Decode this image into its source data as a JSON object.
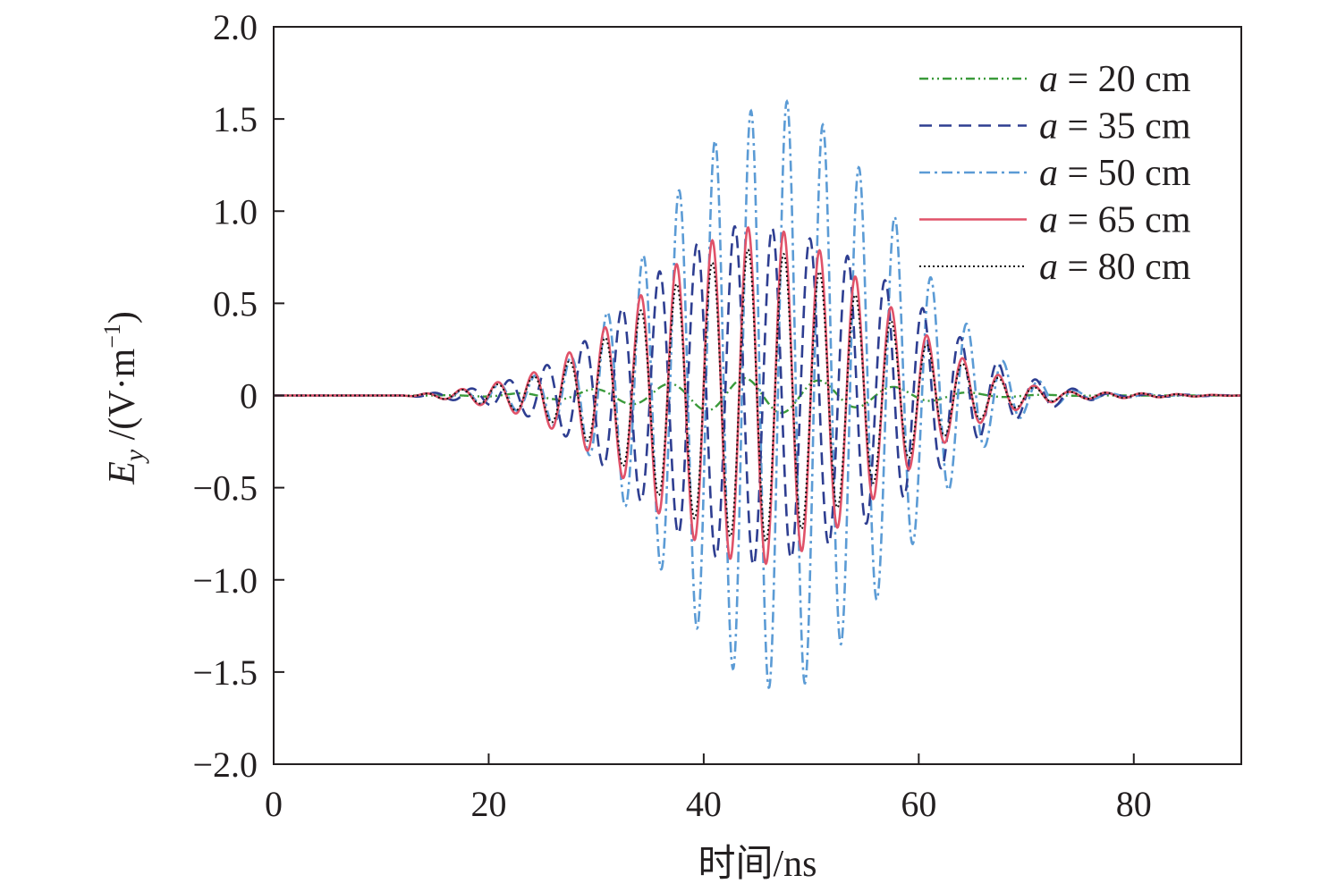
{
  "chart_data": {
    "type": "line",
    "title": "",
    "xlabel": "时间/ns",
    "ylabel": {
      "symbol": "E",
      "subscript": "y",
      "unit_prefix": " /(V·m",
      "unit_exponent": "−1",
      "unit_suffix": ")"
    },
    "xlim": [
      0,
      90
    ],
    "ylim": [
      -2.0,
      2.0
    ],
    "x_ticks": [
      0,
      20,
      40,
      60,
      80
    ],
    "x_tick_labels": [
      "0",
      "20",
      "40",
      "60",
      "80"
    ],
    "y_ticks": [
      2.0,
      1.5,
      1.0,
      0.5,
      0,
      -0.5,
      -1.0,
      -1.5,
      -2.0
    ],
    "y_tick_labels": [
      "2.0",
      "1.5",
      "1.0",
      "0.5",
      "0",
      "−0.5",
      "−1.0",
      "−1.5",
      "−2.0"
    ],
    "grid": false,
    "legend_position": "top-right",
    "series": [
      {
        "name": "a = 20 cm",
        "legend_var": "a",
        "legend_rest": " = 20 cm",
        "color": "#3a9a3a",
        "dash": "dashdotdot",
        "period": 7.0,
        "x": [
          0,
          14,
          18,
          22,
          26,
          30,
          34,
          38,
          41,
          44,
          47,
          50,
          54,
          58,
          62,
          66,
          70,
          74,
          78,
          90
        ],
        "env": [
          0,
          0,
          0.003,
          0.01,
          0.02,
          0.035,
          0.05,
          0.07,
          0.085,
          0.095,
          0.095,
          0.085,
          0.065,
          0.045,
          0.025,
          0.012,
          0.005,
          0.002,
          0,
          0
        ]
      },
      {
        "name": "a = 35 cm",
        "legend_var": "a",
        "legend_rest": " = 35 cm",
        "color": "#2e3e91",
        "dash": "dashed",
        "period": 3.5,
        "x": [
          0,
          12,
          16,
          20,
          24,
          28,
          32,
          36,
          40,
          43,
          45,
          47,
          50,
          54,
          58,
          62,
          66,
          70,
          74,
          78,
          90
        ],
        "env": [
          0,
          0,
          0.02,
          0.05,
          0.12,
          0.25,
          0.45,
          0.68,
          0.85,
          0.92,
          0.92,
          0.9,
          0.85,
          0.74,
          0.58,
          0.4,
          0.22,
          0.1,
          0.04,
          0.01,
          0
        ]
      },
      {
        "name": "a = 50 cm",
        "legend_var": "a",
        "legend_rest": " = 50 cm",
        "color": "#5b9bd5",
        "dash": "dashdot",
        "period": 3.35,
        "x": [
          0,
          12,
          16,
          20,
          24,
          28,
          31,
          34,
          37,
          40,
          43,
          45.5,
          47.5,
          50,
          52,
          55,
          58,
          61,
          64,
          67,
          70,
          74,
          78,
          90
        ],
        "env": [
          0,
          0,
          0.02,
          0.05,
          0.1,
          0.22,
          0.45,
          0.72,
          1.05,
          1.32,
          1.5,
          1.58,
          1.6,
          1.55,
          1.4,
          1.2,
          0.95,
          0.65,
          0.42,
          0.22,
          0.1,
          0.03,
          0.01,
          0
        ]
      },
      {
        "name": "a = 65 cm",
        "legend_var": "a",
        "legend_rest": " = 65 cm",
        "color": "#e05269",
        "dash": "solid",
        "period": 3.33,
        "x": [
          0,
          12,
          16,
          20,
          24,
          28,
          32,
          36,
          40,
          43,
          45,
          47,
          50,
          54,
          58,
          62,
          66,
          70,
          74,
          90
        ],
        "env": [
          0,
          0,
          0.02,
          0.06,
          0.12,
          0.25,
          0.42,
          0.65,
          0.82,
          0.9,
          0.92,
          0.9,
          0.82,
          0.65,
          0.45,
          0.27,
          0.14,
          0.06,
          0.02,
          0
        ]
      },
      {
        "name": "a = 80 cm",
        "legend_var": "a",
        "legend_rest": " = 80 cm",
        "color": "#111111",
        "dash": "dotted",
        "period": 3.33,
        "x": [
          0,
          12,
          16,
          20,
          24,
          28,
          32,
          36,
          40,
          43,
          45,
          47,
          50,
          54,
          58,
          62,
          66,
          70,
          74,
          90
        ],
        "env": [
          0,
          0,
          0.02,
          0.05,
          0.1,
          0.2,
          0.36,
          0.55,
          0.7,
          0.78,
          0.8,
          0.78,
          0.7,
          0.55,
          0.38,
          0.23,
          0.12,
          0.05,
          0.02,
          0
        ]
      }
    ]
  }
}
